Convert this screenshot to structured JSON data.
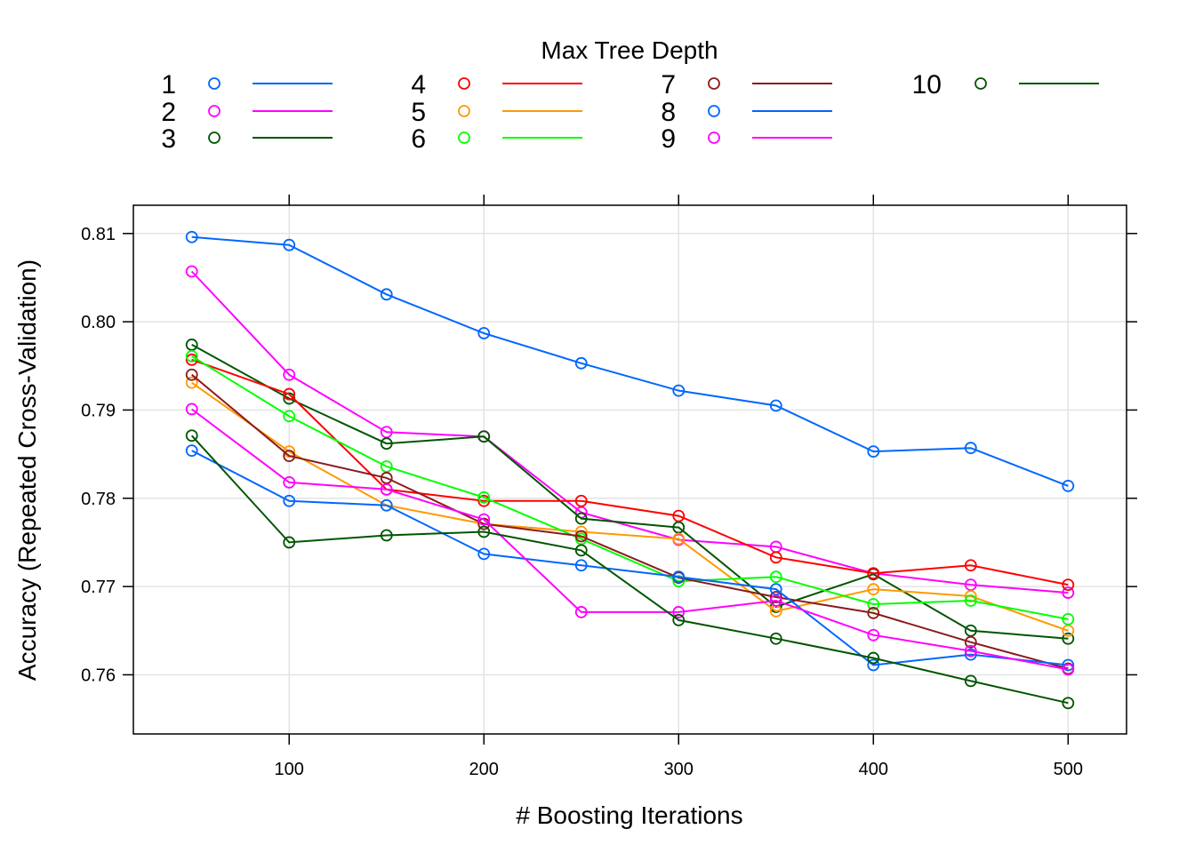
{
  "chart_data": {
    "type": "line",
    "legend": {
      "title": "Max Tree Depth",
      "placement": "top",
      "columns": 4
    },
    "xlabel": "# Boosting Iterations",
    "ylabel": "Accuracy (Repeated Cross-Validation)",
    "xlim": [
      20,
      530
    ],
    "ylim": [
      0.7533,
      0.8132
    ],
    "xticks": [
      100,
      200,
      300,
      400,
      500
    ],
    "yticks": [
      0.76,
      0.77,
      0.78,
      0.79,
      0.8,
      0.81
    ],
    "ytick_labels": [
      "0.76",
      "0.77",
      "0.78",
      "0.79",
      "0.80",
      "0.81"
    ],
    "grid": true,
    "marker": "open-circle",
    "x": [
      50,
      100,
      150,
      200,
      250,
      300,
      350,
      400,
      450,
      500
    ],
    "series": [
      {
        "name": "1",
        "color": "#0066FF",
        "values": [
          0.8096,
          0.8087,
          0.8031,
          0.7987,
          0.7953,
          0.7922,
          0.7905,
          0.7853,
          0.7857,
          0.7814
        ]
      },
      {
        "name": "2",
        "color": "#FF00FF",
        "values": [
          0.8057,
          0.794,
          0.7875,
          0.787,
          0.7784,
          0.7753,
          0.7745,
          0.7715,
          0.7702,
          0.7693
        ]
      },
      {
        "name": "3",
        "color": "#005500",
        "values": [
          0.7974,
          0.7913,
          0.7862,
          0.787,
          0.7777,
          0.7767,
          0.7677,
          0.7714,
          0.765,
          0.7641
        ]
      },
      {
        "name": "4",
        "color": "#FF0000",
        "values": [
          0.7957,
          0.7918,
          0.781,
          0.7797,
          0.7797,
          0.778,
          0.7733,
          0.7715,
          0.7724,
          0.7702
        ]
      },
      {
        "name": "5",
        "color": "#FF9900",
        "values": [
          0.7931,
          0.7853,
          0.7792,
          0.7771,
          0.7762,
          0.7754,
          0.7672,
          0.7697,
          0.7689,
          0.765
        ]
      },
      {
        "name": "6",
        "color": "#00FF00",
        "values": [
          0.7961,
          0.7893,
          0.7836,
          0.7801,
          0.7754,
          0.7706,
          0.7711,
          0.768,
          0.7684,
          0.7663
        ]
      },
      {
        "name": "7",
        "color": "#8B1A1A",
        "values": [
          0.794,
          0.7848,
          0.7823,
          0.7771,
          0.7757,
          0.771,
          0.7688,
          0.767,
          0.7637,
          0.7607
        ]
      },
      {
        "name": "8",
        "color": "#0066FF",
        "values": [
          0.7854,
          0.7797,
          0.7792,
          0.7737,
          0.7724,
          0.7711,
          0.7697,
          0.7611,
          0.7623,
          0.7611
        ]
      },
      {
        "name": "9",
        "color": "#FF00FF",
        "values": [
          0.7901,
          0.7818,
          0.781,
          0.7776,
          0.7671,
          0.7671,
          0.7684,
          0.7645,
          0.7627,
          0.7606
        ]
      },
      {
        "name": "10",
        "color": "#005500",
        "values": [
          0.7871,
          0.775,
          0.7758,
          0.7762,
          0.7741,
          0.7662,
          0.7641,
          0.7619,
          0.7593,
          0.7568
        ]
      }
    ]
  }
}
